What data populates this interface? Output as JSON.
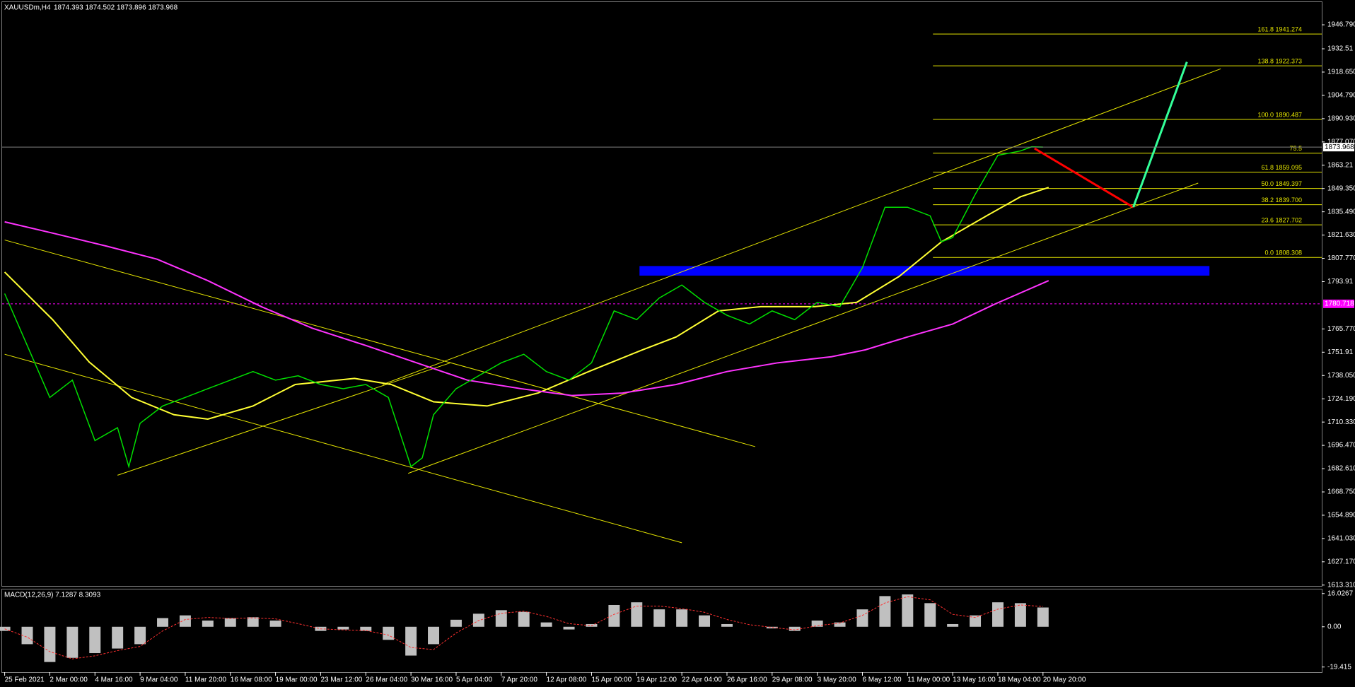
{
  "chart_data": [
    {
      "type": "line",
      "title": "XAUUSDm,H4",
      "quote": "1874.393 1874.502 1873.896 1873.968",
      "color": "#00e000",
      "x": [
        0,
        8,
        16,
        24,
        32,
        40,
        44,
        48,
        56,
        64,
        72,
        80,
        88,
        96,
        104,
        112,
        120,
        128,
        136,
        144,
        148,
        152,
        160,
        168,
        176,
        184,
        192,
        200,
        208,
        216,
        224,
        232,
        240,
        248,
        256,
        264,
        272,
        280,
        288,
        296,
        304,
        312,
        320,
        328,
        332,
        336,
        344,
        352,
        360,
        364,
        368
      ],
      "values": [
        1786.8,
        1755.9,
        1725,
        1735.3,
        1699.3,
        1707,
        1683.8,
        1709.6,
        1719.9,
        1725,
        1730.2,
        1735.3,
        1740.4,
        1735.3,
        1737.9,
        1732.7,
        1730.2,
        1732.7,
        1725,
        1683.8,
        1689,
        1714.7,
        1730.2,
        1737.9,
        1745.6,
        1750.7,
        1740.4,
        1735.3,
        1745.6,
        1776.5,
        1771.3,
        1784.2,
        1791.9,
        1781.6,
        1773.9,
        1768.7,
        1776.5,
        1771.3,
        1781.6,
        1779,
        1802.2,
        1838.2,
        1838.2,
        1833.1,
        1817.6,
        1820.2,
        1845.9,
        1869.1,
        1871.7,
        1874.2,
        1873.968
      ],
      "moving_averages": [
        {
          "color": "#ffff33",
          "x": [
            0,
            17,
            30,
            45,
            60,
            72,
            88,
            103,
            124,
            137,
            152,
            171,
            189,
            207,
            226,
            238,
            253,
            268,
            287,
            302,
            317,
            332,
            348,
            360,
            370
          ],
          "values": [
            1799.6,
            1771.3,
            1746,
            1725,
            1714.7,
            1712.1,
            1719.9,
            1732.7,
            1736.3,
            1732.7,
            1722.4,
            1719.9,
            1727.6,
            1740.4,
            1753.3,
            1761,
            1776.5,
            1779,
            1779,
            1781.6,
            1797,
            1817.6,
            1833.1,
            1844.4,
            1850
          ]
        },
        {
          "color": "#ff33ff",
          "x": [
            0,
            17,
            36,
            54,
            72,
            91,
            109,
            128,
            146,
            164,
            183,
            201,
            219,
            238,
            256,
            274,
            293,
            305,
            320,
            336,
            351,
            370
          ],
          "values": [
            1829.5,
            1822.8,
            1815.1,
            1807.3,
            1794.5,
            1779,
            1766.2,
            1755.9,
            1745.6,
            1735.3,
            1730.2,
            1726.1,
            1727.6,
            1732.7,
            1740.4,
            1745.6,
            1749.2,
            1753.3,
            1761,
            1768.7,
            1780.6,
            1794.5
          ]
        }
      ],
      "xlim": [
        -0.9,
        466.8
      ],
      "ylim": [
        1612.8,
        1958.6
      ],
      "xticks": [
        {
          "value": 0,
          "label": "25 Feb 2021"
        },
        {
          "value": 16,
          "label": "2 Mar 00:00"
        },
        {
          "value": 32,
          "label": "4 Mar 16:00"
        },
        {
          "value": 48,
          "label": "9 Mar 04:00"
        },
        {
          "value": 64,
          "label": "11 Mar 20:00"
        },
        {
          "value": 80,
          "label": "16 Mar 08:00"
        },
        {
          "value": 96,
          "label": "19 Mar 00:00"
        },
        {
          "value": 112,
          "label": "23 Mar 12:00"
        },
        {
          "value": 128,
          "label": "26 Mar 04:00"
        },
        {
          "value": 144,
          "label": "30 Mar 16:00"
        },
        {
          "value": 160,
          "label": "5 Apr 04:00"
        },
        {
          "value": 176,
          "label": "7 Apr 20:00"
        },
        {
          "value": 192,
          "label": "12 Apr 08:00"
        },
        {
          "value": 208,
          "label": "15 Apr 00:00"
        },
        {
          "value": 224,
          "label": "19 Apr 12:00"
        },
        {
          "value": 240,
          "label": "22 Apr 04:00"
        },
        {
          "value": 256,
          "label": "26 Apr 16:00"
        },
        {
          "value": 272,
          "label": "29 Apr 08:00"
        },
        {
          "value": 288,
          "label": "3 May 20:00"
        },
        {
          "value": 304,
          "label": "6 May 12:00"
        },
        {
          "value": 320,
          "label": "11 May 00:00"
        },
        {
          "value": 336,
          "label": "13 May 16:00"
        },
        {
          "value": 352,
          "label": "18 May 04:00"
        },
        {
          "value": 368,
          "label": "20 May 20:00"
        }
      ],
      "yticks": [
        {
          "value": 1946.79,
          "label": "1946.790"
        },
        1932.51,
        {
          "value": 1918.65,
          "label": "1918.650"
        },
        {
          "value": 1904.79,
          "label": "1904.790"
        },
        {
          "value": 1890.93,
          "label": "1890.930"
        },
        {
          "value": 1877.07,
          "label": "1877.070"
        },
        1863.21,
        {
          "value": 1849.35,
          "label": "1849.350"
        },
        {
          "value": 1835.49,
          "label": "1835.490"
        },
        {
          "value": 1821.63,
          "label": "1821.630"
        },
        {
          "value": 1807.77,
          "label": "1807.770"
        },
        1793.91,
        {
          "value": 1765.77,
          "label": "1765.770"
        },
        1751.91,
        {
          "value": 1738.05,
          "label": "1738.050"
        },
        {
          "value": 1724.19,
          "label": "1724.190"
        },
        {
          "value": 1710.33,
          "label": "1710.330"
        },
        {
          "value": 1696.47,
          "label": "1696.470"
        },
        {
          "value": 1682.61,
          "label": "1682.610"
        },
        {
          "value": 1668.75,
          "label": "1668.750"
        },
        {
          "value": 1654.89,
          "label": "1654.890"
        },
        {
          "value": 1641.03,
          "label": "1641.030"
        },
        {
          "value": 1627.17,
          "label": "1627.170"
        },
        {
          "value": 1613.31,
          "label": "1613.310"
        }
      ],
      "current_price": 1873.968,
      "level_line": {
        "value": 1780.718,
        "color": "#ff00ff"
      },
      "fibonacci": {
        "color": "#e6e600",
        "x_start": 329,
        "levels": [
          {
            "value": 1941.274,
            "label": "161.8 1941.274"
          },
          {
            "value": 1922.373,
            "label": "138.8 1922.373"
          },
          {
            "value": 1890.487,
            "label": "100.0 1890.487"
          },
          {
            "value": 1870.353,
            "label": "75.5"
          },
          {
            "value": 1859.095,
            "label": "61.8 1859.095"
          },
          {
            "value": 1849.397,
            "label": "50.0 1849.397"
          },
          {
            "value": 1839.7,
            "label": "38.2 1839.700"
          },
          {
            "value": 1827.702,
            "label": "23.6 1827.702"
          },
          {
            "value": 1808.308,
            "label": "0.0 1808.308"
          }
        ]
      },
      "zone": {
        "x": [
          225,
          427
        ],
        "y": [
          1797.5,
          1803.2
        ],
        "color": "#0000ff"
      },
      "trendlines": [
        {
          "color": "#e6e600",
          "x": [
            0,
            266
          ],
          "y": [
            1818.7,
            1695.7
          ]
        },
        {
          "color": "#e6e600",
          "x": [
            0,
            240
          ],
          "y": [
            1750.7,
            1638.5
          ]
        },
        {
          "color": "#e6e600",
          "x": [
            40,
            158
          ],
          "y": [
            1678.7,
            1745.6
          ]
        },
        {
          "color": "#e6e600",
          "x": [
            143,
            423
          ],
          "y": [
            1679.8,
            1852.6
          ]
        },
        {
          "color": "#e6e600",
          "x": [
            134,
            431
          ],
          "y": [
            1732.7,
            1920.6
          ]
        },
        {
          "color": "#ff0000",
          "x": [
            365,
            400
          ],
          "y": [
            1873.2,
            1838.2
          ]
        },
        {
          "color": "#33ff99",
          "x": [
            400,
            419
          ],
          "y": [
            1838.2,
            1924.7
          ]
        }
      ]
    },
    {
      "type": "bar",
      "title": "MACD(12,26,9) 7.1287 8.3093",
      "color": "#c0c0c0",
      "x": [
        0,
        8,
        16,
        24,
        32,
        40,
        48,
        56,
        64,
        72,
        80,
        88,
        96,
        104,
        112,
        120,
        128,
        136,
        144,
        152,
        160,
        168,
        176,
        184,
        192,
        200,
        208,
        216,
        224,
        232,
        240,
        248,
        256,
        264,
        272,
        280,
        288,
        296,
        304,
        312,
        320,
        328,
        336,
        344,
        352,
        360,
        368
      ],
      "values": [
        -2,
        -8.4,
        -17,
        -15,
        -12.7,
        -10.5,
        -8.4,
        4.2,
        5.5,
        3,
        4.2,
        4.6,
        3,
        0,
        -2,
        -1.3,
        -2,
        -6.3,
        -13.9,
        -8.4,
        3.4,
        6.3,
        8,
        7.2,
        2.1,
        -1.3,
        1.3,
        10.5,
        11.8,
        8.4,
        8.4,
        5.5,
        1.3,
        0,
        -0.8,
        -2,
        3,
        2.1,
        8.4,
        14.8,
        15.6,
        11.4,
        1.3,
        5.5,
        11.8,
        11.4,
        9.3
      ],
      "signal": {
        "color": "#ff3030",
        "values": [
          -1,
          -5,
          -12,
          -15.5,
          -14,
          -11.5,
          -9.5,
          -2,
          3.5,
          4.5,
          4,
          4.3,
          3.8,
          1.5,
          -1,
          -1.5,
          -1.8,
          -4,
          -10,
          -11,
          -3,
          3,
          6.5,
          7.5,
          5,
          1.5,
          0.5,
          6,
          10,
          10,
          8.8,
          7,
          3.5,
          1,
          -0.3,
          -1.5,
          0.5,
          1.8,
          5.5,
          11.5,
          14.5,
          13,
          6,
          4.5,
          8.5,
          10.5,
          9.8
        ]
      },
      "ylim": [
        -21.9,
        18.0
      ],
      "yticks": [
        16.0267,
        {
          "value": 0,
          "label": "0.00"
        },
        -19.415
      ]
    }
  ]
}
